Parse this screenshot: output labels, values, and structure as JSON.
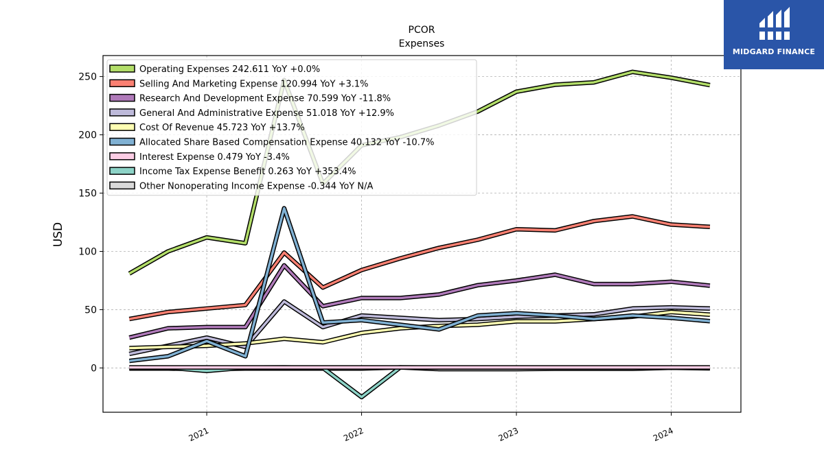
{
  "brand": {
    "name": "MIDGARD FINANCE",
    "bg": "#2a55a8"
  },
  "chart_data": {
    "type": "line",
    "title": "PCOR",
    "subtitle": "Expenses",
    "ylabel": "USD",
    "xlabel": "",
    "ylim": [
      -38,
      268
    ],
    "xlim": [
      2020.33,
      2024.45
    ],
    "yticks": [
      0,
      50,
      100,
      150,
      200,
      250
    ],
    "xticks": [
      2021,
      2022,
      2023,
      2024
    ],
    "xtick_labels": [
      "2021",
      "2022",
      "2023",
      "2024"
    ],
    "grid": true,
    "legend_position": "upper-left",
    "x": [
      2020.5,
      2020.75,
      2021.0,
      2021.25,
      2021.5,
      2021.75,
      2022.0,
      2022.25,
      2022.5,
      2022.75,
      2023.0,
      2023.25,
      2023.5,
      2023.75,
      2024.0,
      2024.25
    ],
    "series": [
      {
        "name": "Other Nonoperating Income Expense",
        "legend": "Other Nonoperating Income Expense  -0.344 YoY N/A",
        "color": "#d9d9d9",
        "values": [
          -0.5,
          -0.5,
          -1.0,
          -0.5,
          -0.5,
          -0.5,
          -0.5,
          0.5,
          -1.0,
          -1.0,
          -1.0,
          -0.7,
          -0.7,
          -0.7,
          0.2,
          -0.344
        ]
      },
      {
        "name": "Income Tax Expense Benefit",
        "legend": "Income Tax Expense Benefit  0.263 YoY +353.4%",
        "color": "#8dd3c7",
        "values": [
          0.2,
          0.3,
          -2.5,
          0.3,
          0.5,
          0.1,
          -25.0,
          0.5,
          0.3,
          0.3,
          0.3,
          0.3,
          0.3,
          0.3,
          0.3,
          0.263
        ]
      },
      {
        "name": "Interest Expense",
        "legend": "Interest Expense  0.479 YoY -3.4%",
        "color": "#fccde5",
        "values": [
          0.5,
          0.5,
          0.5,
          0.5,
          0.5,
          0.5,
          0.5,
          0.5,
          0.5,
          0.5,
          0.5,
          0.5,
          0.5,
          0.5,
          0.5,
          0.479
        ]
      },
      {
        "name": "General And Administrative Expense",
        "legend": "General And Administrative Expense  51.018 YoY +12.9%",
        "color": "#bebada",
        "values": [
          12,
          19,
          26,
          18,
          57,
          35,
          45,
          43,
          41,
          42,
          44,
          45,
          46,
          51,
          52,
          51.018
        ]
      },
      {
        "name": "Cost Of Revenue",
        "legend": "Cost Of Revenue  45.723 YoY +13.7%",
        "color": "#ffffb3",
        "values": [
          17,
          18,
          19,
          21,
          25,
          22,
          30,
          34,
          36,
          37,
          40,
          40,
          42,
          44,
          48,
          45.723
        ]
      },
      {
        "name": "Research And Development Expense",
        "legend": "Research And Development Expense  70.599 YoY -11.8%",
        "color": "#b07aba",
        "values": [
          26,
          34,
          35,
          35,
          88,
          53,
          60,
          60,
          63,
          71,
          75,
          80,
          72,
          72,
          74,
          70.599
        ]
      },
      {
        "name": "Selling And Marketing Expense",
        "legend": "Selling And Marketing Expense  120.994 YoY +3.1%",
        "color": "#fb8072",
        "values": [
          42,
          48,
          51,
          54,
          99,
          69,
          84,
          94,
          103,
          110,
          119,
          118,
          126,
          130,
          123,
          120.994
        ]
      },
      {
        "name": "Allocated Share Based Compensation Expense",
        "legend": "Allocated Share Based Compensation Expense  40.132 YoY -10.7%",
        "color": "#80b1d3",
        "values": [
          6,
          10,
          23,
          10,
          137,
          39,
          41,
          37,
          33,
          45,
          47,
          45,
          42,
          45,
          43,
          40.132
        ]
      },
      {
        "name": "Operating Expenses",
        "legend": "Operating Expenses  242.611 YoY +0.0%",
        "color": "#b3de69",
        "values": [
          81,
          100,
          112,
          107,
          247,
          158,
          191,
          198,
          208,
          220,
          237,
          243,
          245,
          254,
          249,
          242.611
        ]
      }
    ],
    "legend_order": [
      "Operating Expenses",
      "Selling And Marketing Expense",
      "Research And Development Expense",
      "General And Administrative Expense",
      "Cost Of Revenue",
      "Allocated Share Based Compensation Expense",
      "Interest Expense",
      "Income Tax Expense Benefit",
      "Other Nonoperating Income Expense"
    ]
  }
}
